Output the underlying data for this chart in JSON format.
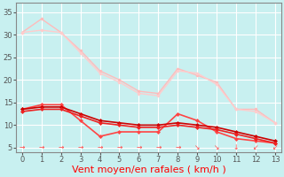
{
  "background_color": "#c8f0f0",
  "grid_color": "#ffffff",
  "xlabel": "Vent moyen/en rafales ( km/h )",
  "xlabel_color": "#ff0000",
  "xlabel_fontsize": 8,
  "yticks": [
    5,
    10,
    15,
    20,
    25,
    30,
    35
  ],
  "xticks": [
    0,
    1,
    2,
    3,
    4,
    5,
    6,
    7,
    8,
    9,
    10,
    11,
    12,
    13
  ],
  "xlim": [
    -0.3,
    13.3
  ],
  "ylim": [
    4,
    37
  ],
  "lines": [
    {
      "x": [
        0,
        1,
        2,
        3,
        4,
        5,
        6,
        7,
        8,
        9,
        10,
        11,
        12,
        13
      ],
      "y": [
        30.5,
        33.5,
        30.5,
        26.5,
        22.0,
        20.0,
        17.5,
        17.0,
        22.5,
        21.0,
        19.5,
        13.5,
        13.5,
        10.5
      ],
      "color": "#ffbbbb",
      "linewidth": 1.0,
      "marker": "o",
      "markersize": 2.5,
      "linestyle": "-"
    },
    {
      "x": [
        0,
        1,
        2,
        3,
        4,
        5,
        6,
        7,
        8,
        9,
        10,
        11,
        12,
        13
      ],
      "y": [
        30.5,
        31.0,
        30.5,
        26.0,
        21.5,
        19.5,
        17.0,
        16.5,
        22.0,
        21.5,
        19.0,
        13.5,
        13.0,
        10.5
      ],
      "color": "#ffcccc",
      "linewidth": 1.0,
      "marker": "o",
      "markersize": 2.5,
      "linestyle": "-"
    },
    {
      "x": [
        0,
        1,
        2,
        3,
        4,
        5,
        6,
        7,
        8,
        9,
        10,
        11,
        12,
        13
      ],
      "y": [
        13.5,
        14.5,
        14.5,
        11.0,
        7.5,
        8.5,
        8.5,
        8.5,
        12.5,
        11.0,
        8.5,
        7.0,
        6.5,
        6.0
      ],
      "color": "#ff4444",
      "linewidth": 1.2,
      "marker": "D",
      "markersize": 2.5,
      "linestyle": "-"
    },
    {
      "x": [
        0,
        1,
        2,
        3,
        4,
        5,
        6,
        7,
        8,
        9,
        10,
        11,
        12,
        13
      ],
      "y": [
        13.5,
        14.0,
        14.0,
        12.5,
        11.0,
        10.5,
        10.0,
        10.0,
        10.5,
        10.0,
        9.5,
        8.5,
        7.5,
        6.5
      ],
      "color": "#cc0000",
      "linewidth": 1.2,
      "marker": "D",
      "markersize": 2.5,
      "linestyle": "-"
    },
    {
      "x": [
        0,
        1,
        2,
        3,
        4,
        5,
        6,
        7,
        8,
        9,
        10,
        11,
        12,
        13
      ],
      "y": [
        13.0,
        13.5,
        13.5,
        12.0,
        10.5,
        10.0,
        9.5,
        9.5,
        10.0,
        9.5,
        9.0,
        8.0,
        7.0,
        6.0
      ],
      "color": "#ee2222",
      "linewidth": 1.2,
      "marker": "D",
      "markersize": 2.5,
      "linestyle": "-"
    }
  ],
  "wind_arrows": {
    "y": 4.2,
    "color": "#ff4444",
    "x": [
      0,
      1,
      2,
      3,
      4,
      5,
      6,
      7,
      8,
      9,
      10,
      11,
      12,
      13
    ],
    "symbols": [
      "→",
      "→",
      "→",
      "→",
      "→",
      "→",
      "→",
      "→",
      "→",
      "↘",
      "↘",
      "↓",
      "↙",
      "↙"
    ],
    "fontsize": 5.5
  }
}
